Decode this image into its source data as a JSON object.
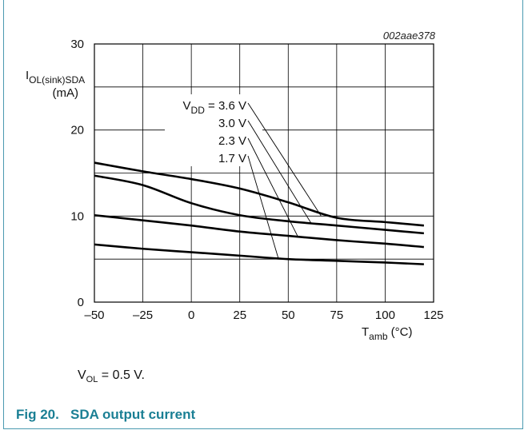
{
  "chart_data": {
    "type": "line",
    "reference": "002aae378",
    "ylabel": {
      "main": "I",
      "sub": "OL(sink)SDA",
      "unit": "(mA)"
    },
    "xlabel": {
      "main": "T",
      "sub": "amb",
      "unit": " (°C)"
    },
    "xlim": [
      -50,
      125
    ],
    "ylim": [
      0,
      30
    ],
    "xticks": [
      -50,
      -25,
      0,
      25,
      50,
      75,
      100,
      125
    ],
    "yticks": [
      0,
      10,
      20,
      30
    ],
    "xtick_labels": [
      "–50",
      "–25",
      "0",
      "25",
      "50",
      "75",
      "100",
      "125"
    ],
    "ytick_labels": [
      "0",
      "10",
      "20",
      "30"
    ],
    "grid": true,
    "series_label_prefix": {
      "main": "V",
      "sub": "DD",
      "rest": " = "
    },
    "series": [
      {
        "name": "3.6 V",
        "label_text": "3.6 V",
        "x": [
          -50,
          -25,
          0,
          25,
          50,
          75,
          100,
          120
        ],
        "y": [
          16.2,
          15.2,
          14.3,
          13.2,
          11.6,
          9.8,
          9.3,
          8.9
        ]
      },
      {
        "name": "3.0 V",
        "label_text": "3.0 V",
        "x": [
          -50,
          -25,
          0,
          25,
          50,
          75,
          100,
          120
        ],
        "y": [
          14.7,
          13.6,
          11.5,
          10.1,
          9.4,
          8.9,
          8.4,
          8.0
        ]
      },
      {
        "name": "2.3 V",
        "label_text": "2.3 V",
        "x": [
          -50,
          -25,
          0,
          25,
          50,
          75,
          100,
          120
        ],
        "y": [
          10.1,
          9.5,
          8.9,
          8.2,
          7.7,
          7.2,
          6.8,
          6.4
        ]
      },
      {
        "name": "1.7 V",
        "label_text": "1.7 V",
        "x": [
          -50,
          -25,
          0,
          25,
          50,
          75,
          100,
          120
        ],
        "y": [
          6.7,
          6.2,
          5.8,
          5.4,
          5.0,
          4.8,
          4.6,
          4.4
        ]
      }
    ],
    "label_pointers": [
      {
        "series": "3.6 V",
        "to": [
          67,
          10.0
        ]
      },
      {
        "series": "3.0 V",
        "to": [
          62,
          9.1
        ]
      },
      {
        "series": "2.3 V",
        "to": [
          55,
          7.6
        ]
      },
      {
        "series": "1.7 V",
        "to": [
          45,
          5.0
        ]
      }
    ]
  },
  "note": {
    "main": "V",
    "sub": "OL",
    "rest": " = 0.5 V."
  },
  "caption": {
    "number": "Fig 20.",
    "title": "SDA output current"
  }
}
